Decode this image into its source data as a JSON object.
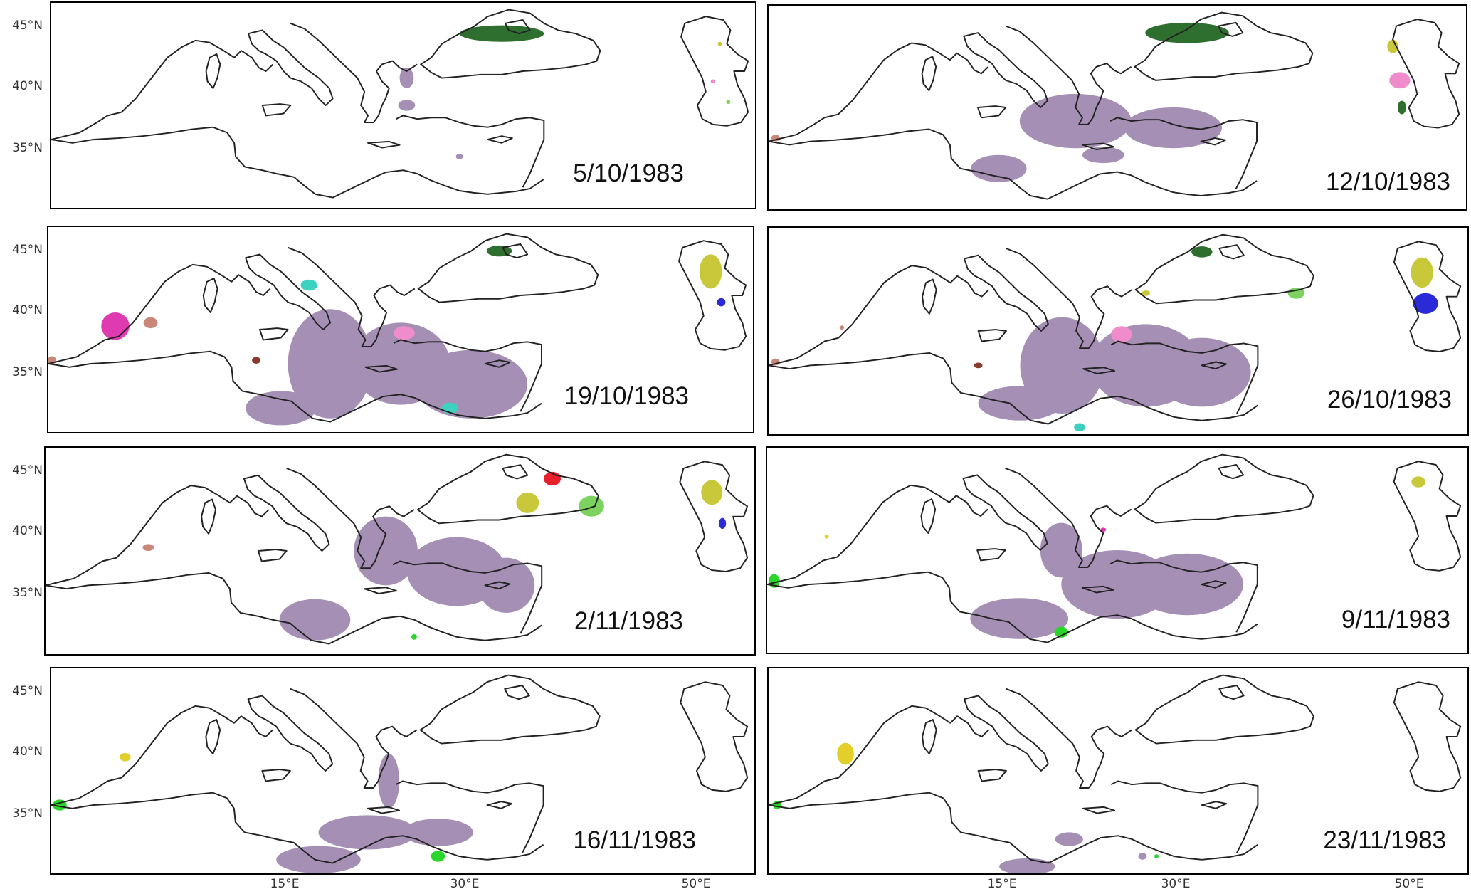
{
  "panels": [
    {
      "date": "5/10/1983"
    },
    {
      "date": "12/10/1983"
    },
    {
      "date": "19/10/1983"
    },
    {
      "date": "26/10/1983"
    },
    {
      "date": "2/11/1983"
    },
    {
      "date": "9/11/1983"
    },
    {
      "date": "16/11/1983"
    },
    {
      "date": "23/11/1983"
    }
  ],
  "axes": {
    "lat_labels": [
      "45°N",
      "40°N",
      "35°N"
    ],
    "lon_labels": [
      "15°E",
      "30°E",
      "50°E"
    ]
  },
  "colors": {
    "coastline": "#222222",
    "aerosol_main": "#a58fb4",
    "dark_green": "#2e6e2e",
    "light_green": "#7cd35f",
    "yellow_olive": "#c8c83a",
    "pink": "#f08ccb",
    "blue": "#2a2ad8",
    "magenta": "#e03ab0",
    "salmon": "#c9877a",
    "teal": "#3fd1c0",
    "red": "#e8202a",
    "bright_green": "#2bd62b",
    "yellow": "#e2cf2a",
    "brown": "#8b3a2e"
  }
}
